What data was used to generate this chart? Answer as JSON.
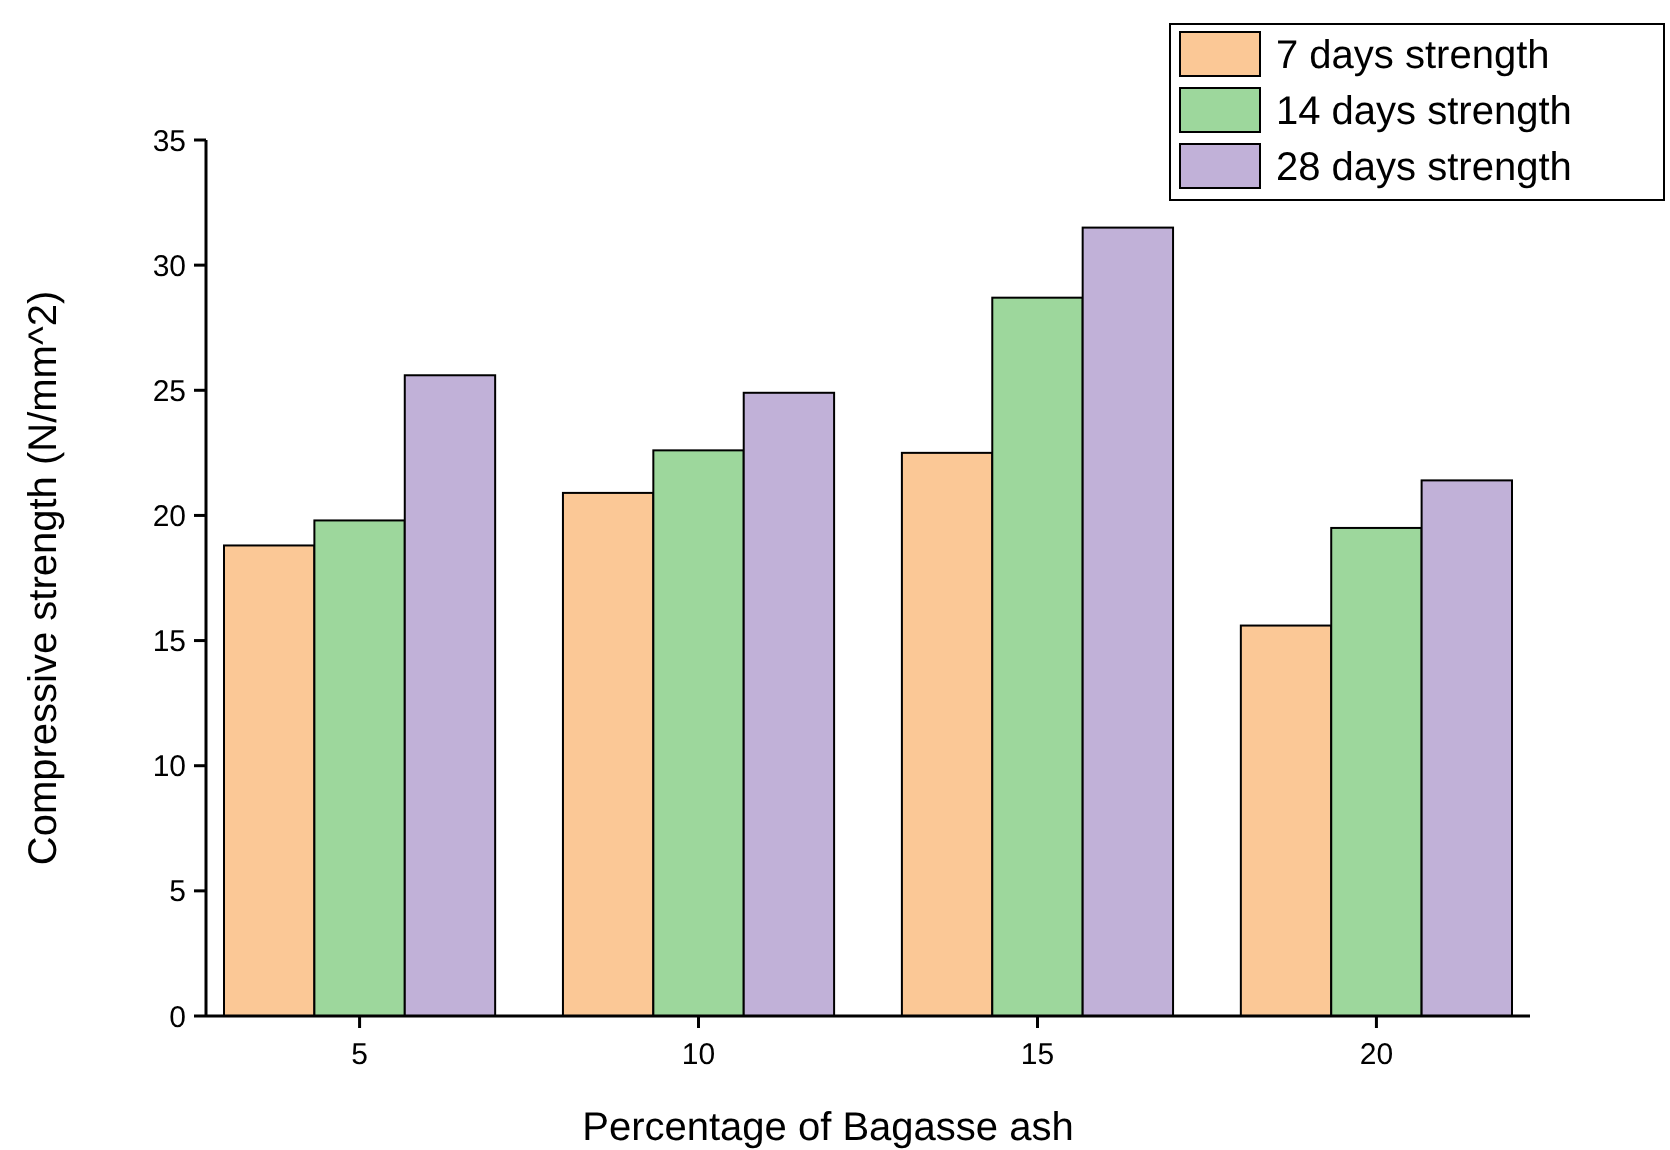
{
  "chart_data": {
    "type": "bar",
    "xlabel": "Percentage of Bagasse ash",
    "ylabel": "Compressive strength (N/mm^2)",
    "categories": [
      "5",
      "10",
      "15",
      "20"
    ],
    "series": [
      {
        "name": "7 days strength",
        "color": "#fbc896",
        "values": [
          18.8,
          20.9,
          22.5,
          15.6
        ]
      },
      {
        "name": "14 days strength",
        "color": "#9dd79c",
        "values": [
          19.8,
          22.6,
          28.7,
          19.5
        ]
      },
      {
        "name": "28 days strength",
        "color": "#c1b1d8",
        "values": [
          25.6,
          24.9,
          31.5,
          21.4
        ]
      }
    ],
    "ylim": [
      0,
      35
    ],
    "yticks": [
      0,
      5,
      10,
      15,
      20,
      25,
      30,
      35
    ],
    "grid": false,
    "legend": "top right"
  }
}
